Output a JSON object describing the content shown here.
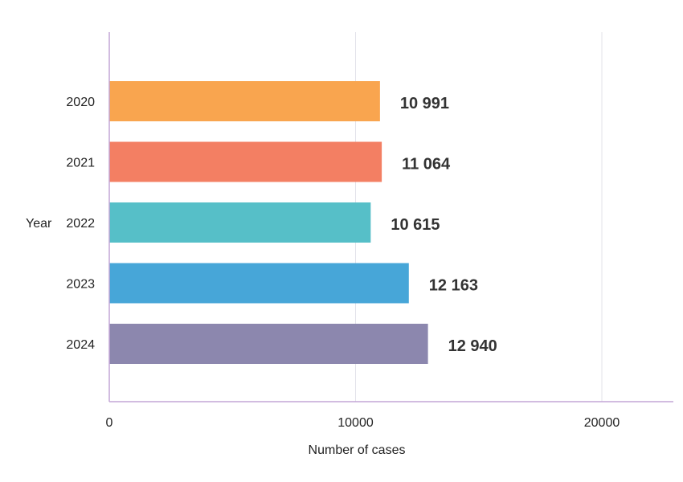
{
  "chart_data": {
    "type": "bar",
    "orientation": "horizontal",
    "categories": [
      "2020",
      "2021",
      "2022",
      "2023",
      "2024"
    ],
    "values": [
      10991,
      11064,
      10615,
      12163,
      12940
    ],
    "value_labels": [
      "10 991",
      "11 064",
      "10 615",
      "12 163",
      "12 940"
    ],
    "colors": [
      "#F9A54F",
      "#F37F63",
      "#56BFC8",
      "#47A6D8",
      "#8C87AE"
    ],
    "xlabel": "Number of cases",
    "ylabel": "Year",
    "xlim": [
      0,
      23000
    ],
    "xticks": [
      0,
      10000,
      20000
    ],
    "xtick_labels": [
      "0",
      "10000",
      "20000"
    ],
    "grid": "vertical",
    "legend": "none"
  }
}
